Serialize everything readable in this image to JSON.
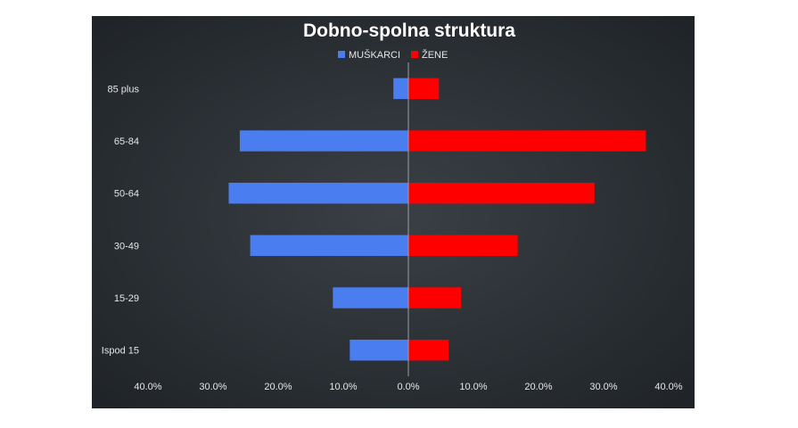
{
  "chart_data": {
    "type": "bar",
    "orientation": "horizontal",
    "layout": "population-pyramid",
    "title": "Dobno-spolna struktura",
    "categories": [
      "85 plus",
      "65-84",
      "50-64",
      "30-49",
      "15-29",
      "Ispod 15"
    ],
    "series": [
      {
        "name": "MUŠKARCI",
        "side": "left",
        "color": "#4a7ef0",
        "values": [
          2.3,
          25.9,
          27.6,
          24.3,
          11.6,
          9.0
        ]
      },
      {
        "name": "ŽENE",
        "side": "right",
        "color": "#ff0000",
        "values": [
          4.7,
          36.5,
          28.6,
          16.8,
          8.1,
          6.2
        ]
      }
    ],
    "xlim": [
      -40,
      40
    ],
    "xticks": [
      -40,
      -30,
      -20,
      -10,
      0,
      10,
      20,
      30,
      40
    ],
    "xtick_labels": [
      "40.0%",
      "30.0%",
      "20.0%",
      "10.0%",
      "0.0%",
      "10.0%",
      "20.0%",
      "30.0%",
      "40.0%"
    ],
    "legend_position": "top",
    "grid": false,
    "background": "#2b3035"
  }
}
